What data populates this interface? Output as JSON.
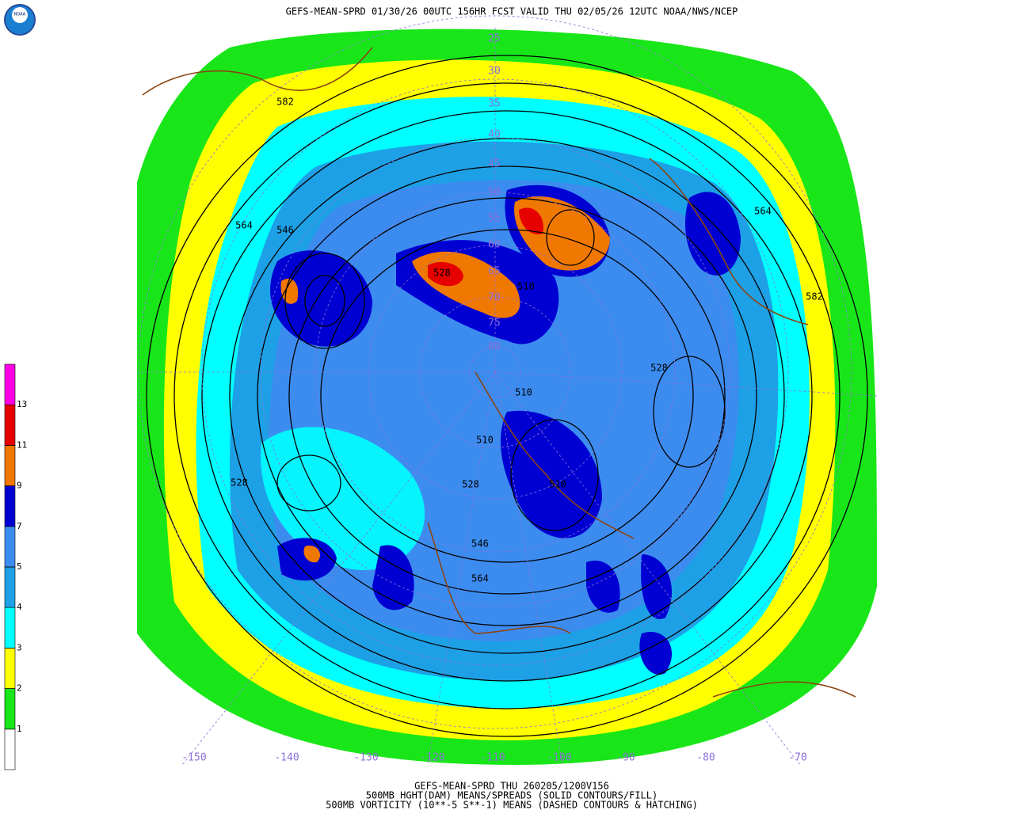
{
  "header": {
    "title": "GEFS-MEAN-SPRD 01/30/26 00UTC 156HR FCST VALID THU 02/05/26 12UTC NOAA/NWS/NCEP"
  },
  "legend": {
    "levels": [
      1,
      2,
      3,
      4,
      5,
      7,
      9,
      11,
      13
    ],
    "colors": [
      "#ffffff",
      "#19e619",
      "#ffff00",
      "#00ffff",
      "#1ea0e6",
      "#3c8cf0",
      "#0000d2",
      "#f07800",
      "#e60000",
      "#ff00e6"
    ]
  },
  "map": {
    "contour_labels": [
      "582",
      "564",
      "546",
      "528",
      "510",
      "528",
      "564",
      "582",
      "528",
      "510",
      "510",
      "528",
      "546",
      "564",
      "510"
    ],
    "latitude_labels": [
      "25",
      "30",
      "35",
      "40",
      "45",
      "50",
      "55",
      "60",
      "65",
      "70",
      "75",
      "80"
    ],
    "longitude_labels": [
      "-150",
      "-140",
      "-130",
      "-120",
      "-110",
      "-100",
      "-90",
      "-80",
      "-70"
    ]
  },
  "footer": {
    "lines": [
      "GEFS-MEAN-SPRD THU 260205/1200V156",
      "500MB HGHT(DAM) MEANS/SPREADS (SOLID CONTOURS/FILL)",
      "500MB VORTICITY (10**-5 S**-1) MEANS (DASHED CONTOURS & HATCHING)"
    ]
  }
}
